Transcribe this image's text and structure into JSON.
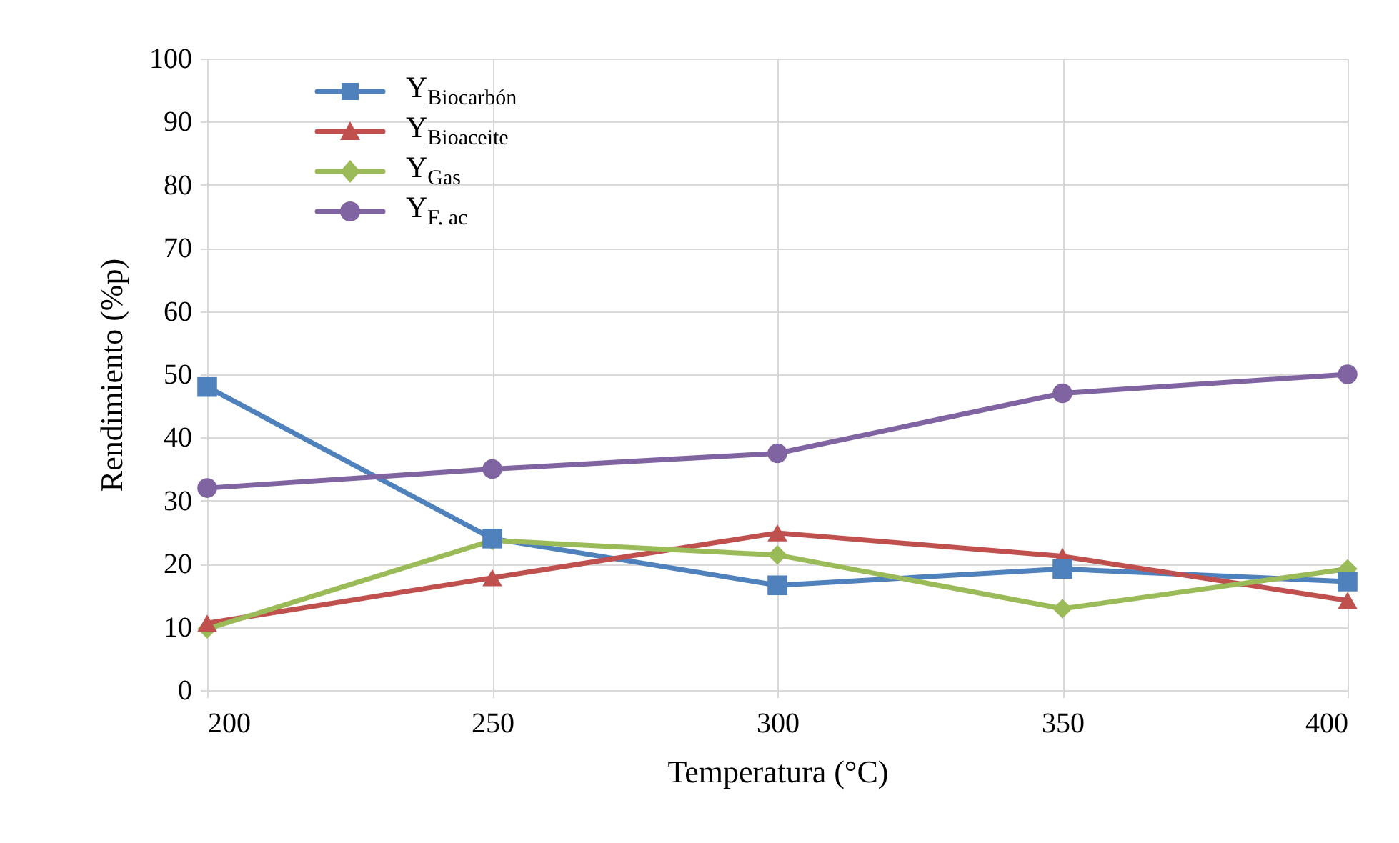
{
  "chart_data": {
    "type": "line",
    "xlabel": "Temperatura (°C)",
    "ylabel": "Rendimiento (%p)",
    "x": [
      200,
      250,
      300,
      350,
      400
    ],
    "xlim": [
      200,
      400
    ],
    "xticks": [
      200,
      250,
      300,
      350,
      400
    ],
    "ylim": [
      0,
      100
    ],
    "yticks": [
      0,
      10,
      20,
      30,
      40,
      50,
      60,
      70,
      80,
      90,
      100
    ],
    "grid": true,
    "legend": "top left",
    "line_style": "solid",
    "series": [
      {
        "name": "Y$_{Biocarbón}$",
        "color": "#4f81bd",
        "marker": "square",
        "values": [
          48.0,
          24.0,
          16.6,
          19.2,
          17.2
        ]
      },
      {
        "name": "Y$_{Bioaceite}$",
        "color": "#c0504d",
        "marker": "triangle",
        "values": [
          10.6,
          17.8,
          24.9,
          21.2,
          14.2
        ]
      },
      {
        "name": "Y$_{Gas}$",
        "color": "#9bbb59",
        "marker": "diamond",
        "values": [
          9.7,
          23.7,
          21.4,
          12.9,
          19.2
        ]
      },
      {
        "name": "Y$_{F. ac}$",
        "color": "#8064a2",
        "marker": "circle",
        "values": [
          32.0,
          35.0,
          37.5,
          47.0,
          50.0
        ]
      }
    ]
  }
}
